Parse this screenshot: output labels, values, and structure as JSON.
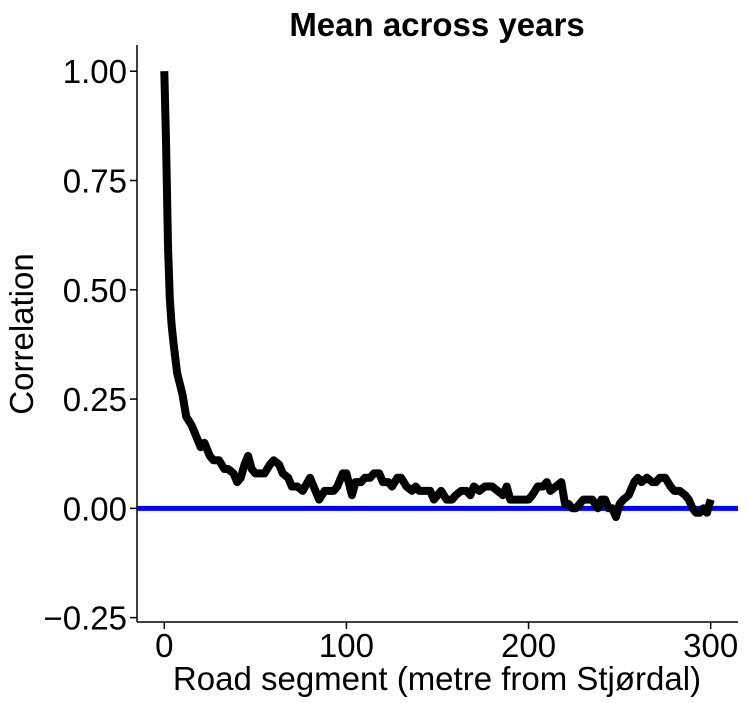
{
  "chart_data": {
    "type": "line",
    "title": "Mean across years",
    "xlabel": "Road segment (metre from Stjørdal)",
    "ylabel": "Correlation",
    "xlim": [
      -15,
      315
    ],
    "ylim": [
      -0.26,
      1.06
    ],
    "x_ticks": [
      0,
      100,
      200,
      300
    ],
    "x_tick_labels": [
      "0",
      "100",
      "200",
      "300"
    ],
    "y_ticks": [
      -0.25,
      0,
      0.25,
      0.5,
      0.75,
      1.0
    ],
    "y_tick_labels": [
      "−0.25",
      "0.00",
      "0.25",
      "0.50",
      "0.75",
      "1.00"
    ],
    "grid": false,
    "reference_line": {
      "y": 0,
      "color": "#0000ff"
    },
    "series": [
      {
        "color": "#000000",
        "x": [
          0,
          1,
          2,
          3,
          4,
          5,
          7,
          10,
          12,
          15,
          18,
          20,
          22,
          25,
          27,
          30,
          33,
          35,
          38,
          40,
          42,
          44,
          46,
          48,
          50,
          52,
          55,
          58,
          60,
          63,
          65,
          68,
          70,
          73,
          76,
          80,
          83,
          85,
          88,
          90,
          93,
          95,
          98,
          100,
          103,
          105,
          108,
          110,
          113,
          115,
          118,
          120,
          123,
          125,
          128,
          130,
          133,
          136,
          138,
          140,
          143,
          146,
          148,
          150,
          152,
          155,
          158,
          160,
          163,
          166,
          168,
          170,
          173,
          176,
          178,
          180,
          183,
          186,
          188,
          190,
          193,
          196,
          198,
          200,
          202,
          205,
          208,
          210,
          212,
          215,
          218,
          220,
          222,
          224,
          226,
          228,
          230,
          232,
          235,
          238,
          240,
          242,
          244,
          246,
          248,
          250,
          252,
          255,
          258,
          260,
          262,
          265,
          268,
          270,
          272,
          275,
          278,
          280,
          283,
          286,
          288,
          290,
          292,
          294,
          296,
          298,
          300
        ],
        "y": [
          1.0,
          0.83,
          0.6,
          0.48,
          0.42,
          0.38,
          0.31,
          0.26,
          0.21,
          0.19,
          0.16,
          0.14,
          0.15,
          0.12,
          0.11,
          0.11,
          0.09,
          0.09,
          0.08,
          0.06,
          0.07,
          0.1,
          0.12,
          0.09,
          0.08,
          0.08,
          0.08,
          0.1,
          0.11,
          0.1,
          0.08,
          0.07,
          0.05,
          0.05,
          0.04,
          0.07,
          0.04,
          0.02,
          0.04,
          0.04,
          0.04,
          0.05,
          0.08,
          0.08,
          0.03,
          0.06,
          0.06,
          0.07,
          0.07,
          0.08,
          0.08,
          0.06,
          0.06,
          0.05,
          0.07,
          0.07,
          0.05,
          0.04,
          0.05,
          0.04,
          0.04,
          0.04,
          0.02,
          0.03,
          0.04,
          0.02,
          0.02,
          0.03,
          0.04,
          0.04,
          0.03,
          0.05,
          0.04,
          0.05,
          0.05,
          0.05,
          0.04,
          0.03,
          0.05,
          0.02,
          0.02,
          0.02,
          0.02,
          0.02,
          0.03,
          0.05,
          0.05,
          0.06,
          0.04,
          0.05,
          0.06,
          0.01,
          0.01,
          0.0,
          0.0,
          0.01,
          0.02,
          0.02,
          0.02,
          0.0,
          0.02,
          0.02,
          0.0,
          0.0,
          -0.02,
          0.01,
          0.02,
          0.03,
          0.06,
          0.07,
          0.06,
          0.07,
          0.06,
          0.06,
          0.07,
          0.07,
          0.05,
          0.04,
          0.04,
          0.03,
          0.02,
          0.0,
          -0.01,
          -0.01,
          0.0,
          -0.01,
          0.02
        ]
      }
    ]
  }
}
